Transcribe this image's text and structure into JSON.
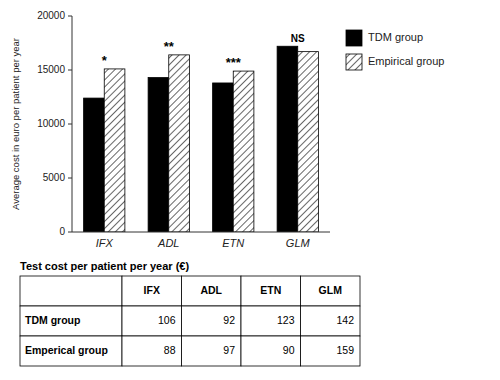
{
  "chart_data": [
    {
      "type": "bar",
      "categories": [
        "IFX",
        "ADL",
        "ETN",
        "GLM"
      ],
      "series": [
        {
          "name": "TDM group",
          "color": "#000000",
          "values": [
            12400,
            14300,
            13800,
            17200
          ]
        },
        {
          "name": "Empirical group",
          "color": "#ffffff",
          "values": [
            15100,
            16400,
            14900,
            16700
          ]
        }
      ],
      "annotations": [
        "*",
        "**",
        "***",
        "NS"
      ],
      "ylabel": "Average cost in euro per patient per year",
      "ylim": [
        0,
        20000
      ],
      "yticks": [
        0,
        5000,
        10000,
        15000,
        20000
      ],
      "grid": false,
      "legend": "right"
    },
    {
      "type": "table",
      "title": "Test cost per patient per year (€)",
      "categories": [
        "IFX",
        "ADL",
        "ETN",
        "GLM"
      ],
      "series": [
        {
          "name": "TDM group",
          "values": [
            106,
            92,
            123,
            142
          ]
        },
        {
          "name": "Emperical group",
          "values": [
            88,
            97,
            90,
            159
          ]
        }
      ]
    }
  ]
}
